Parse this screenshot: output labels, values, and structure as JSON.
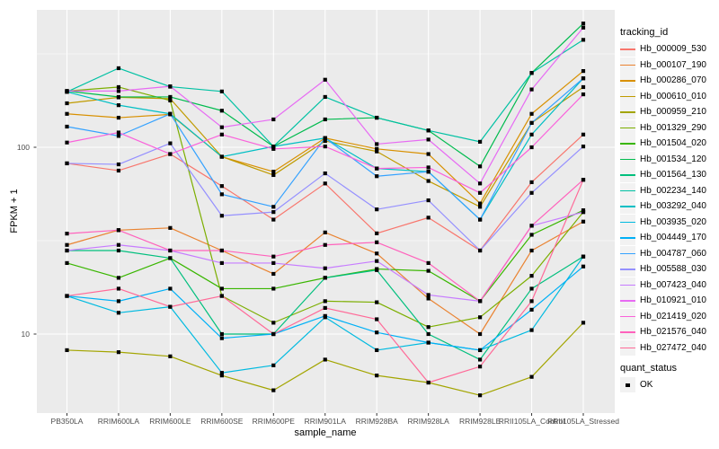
{
  "figure": {
    "panel_bg": "#EBEBEB",
    "grid_color": "#FFFFFF",
    "axis_text_color": "#4D4D4D",
    "tick_mark_color": "#333333",
    "point_color": "#000000"
  },
  "y_axis": {
    "label": "FPKM + 1",
    "tick_labels": [
      "100",
      "10"
    ]
  },
  "x_axis": {
    "label": "sample_name"
  },
  "legend": {
    "tracking_title": "tracking_id",
    "quant_title": "quant_status",
    "quant_label": "OK"
  },
  "chart_data": {
    "type": "line",
    "x_label": "sample_name",
    "y_label": "FPKM + 1",
    "y_scale": "log10",
    "y_ticks": [
      10,
      100
    ],
    "y_minor_ticks": [
      31.62,
      316.23
    ],
    "ylim": [
      3.9,
      550
    ],
    "grid": true,
    "legend_position": "right",
    "marker": "small-black-square",
    "categories": [
      "PB350LA",
      "RRIM600LA",
      "RRIM600LE",
      "RRIM600SE",
      "RRIM600PE",
      "RRIM901LA",
      "RRIM928BA",
      "RRIM928LA",
      "RRIM928LE",
      "RRII105LA_Control",
      "RRII105LA_Stressed"
    ],
    "series": [
      {
        "name": "Hb_000009_530",
        "color": "#F8766D",
        "values": [
          82,
          75,
          92,
          62,
          41,
          64,
          34.6,
          42,
          28,
          65,
          117
        ]
      },
      {
        "name": "Hb_000107_190",
        "color": "#EA8331",
        "values": [
          30,
          36,
          37,
          28,
          21,
          35,
          27,
          15.5,
          10,
          28,
          40
        ]
      },
      {
        "name": "Hb_000286_070",
        "color": "#D89000",
        "values": [
          151,
          144,
          150,
          89,
          74,
          112,
          98,
          92,
          50,
          151,
          256
        ]
      },
      {
        "name": "Hb_000610_010",
        "color": "#C09B00",
        "values": [
          172,
          185,
          182,
          89,
          71,
          108,
          95,
          66,
          48,
          135,
          210
        ]
      },
      {
        "name": "Hb_000959_210",
        "color": "#A3A500",
        "values": [
          8.2,
          8.0,
          7.6,
          6.0,
          5.0,
          7.3,
          6.0,
          5.5,
          4.7,
          5.9,
          11.5
        ]
      },
      {
        "name": "Hb_001329_290",
        "color": "#7CAE00",
        "values": [
          200,
          210,
          178,
          16,
          11.5,
          15,
          14.8,
          10.9,
          12.3,
          20.5,
          45
        ]
      },
      {
        "name": "Hb_001504_020",
        "color": "#39B600",
        "values": [
          24,
          20,
          25.5,
          17.5,
          17.5,
          20,
          22.3,
          21.8,
          15,
          34,
          46
        ]
      },
      {
        "name": "Hb_001534_120",
        "color": "#00BB4E",
        "values": [
          200,
          186,
          186,
          157,
          101,
          141,
          144,
          123,
          79,
          250,
          460
        ]
      },
      {
        "name": "Hb_001564_130",
        "color": "#00BF7D",
        "values": [
          28,
          28,
          25.5,
          10,
          10,
          20,
          22,
          10,
          7.3,
          17.5,
          26
        ]
      },
      {
        "name": "Hb_002234_140",
        "color": "#00C1A3",
        "values": [
          198,
          265,
          211,
          199,
          101,
          186,
          144,
          123,
          107,
          250,
          376
        ]
      },
      {
        "name": "Hb_003292_040",
        "color": "#00BFC4",
        "values": [
          198,
          168,
          151,
          89,
          101,
          112,
          77,
          74,
          41,
          117,
          234
        ]
      },
      {
        "name": "Hb_003935_020",
        "color": "#00BAE0",
        "values": [
          16,
          13,
          14,
          6.2,
          6.8,
          12.3,
          8.2,
          9,
          8.2,
          10.5,
          26
        ]
      },
      {
        "name": "Hb_004449_170",
        "color": "#00B0F6",
        "values": [
          16,
          15,
          17.5,
          9.5,
          10,
          12.5,
          10.2,
          9,
          8.2,
          13.5,
          23
        ]
      },
      {
        "name": "Hb_004787_060",
        "color": "#35A2FF",
        "values": [
          129,
          115,
          151,
          56,
          48,
          112,
          70,
          74,
          41,
          135,
          234
        ]
      },
      {
        "name": "Hb_005588_030",
        "color": "#9590FF",
        "values": [
          82,
          81,
          105,
          43,
          45,
          72.5,
          46.5,
          52,
          28,
          57,
          101
        ]
      },
      {
        "name": "Hb_007423_040",
        "color": "#C77CFF",
        "values": [
          28,
          30,
          28,
          24,
          24,
          22.5,
          24.6,
          16.2,
          15,
          38,
          45
        ]
      },
      {
        "name": "Hb_010921_010",
        "color": "#E76BF3",
        "values": [
          200,
          200,
          212,
          128,
          141,
          230,
          104,
          110,
          64,
          204,
          437
        ]
      },
      {
        "name": "Hb_021419_020",
        "color": "#FA62DB",
        "values": [
          106,
          120,
          92,
          117,
          98,
          101,
          77,
          78,
          57,
          100,
          192
        ]
      },
      {
        "name": "Hb_021576_040",
        "color": "#FF62BC",
        "values": [
          34.5,
          36,
          28,
          28,
          26,
          30,
          31,
          24,
          15,
          38,
          67
        ]
      },
      {
        "name": "Hb_027472_040",
        "color": "#FF6A98",
        "values": [
          16,
          17.5,
          14,
          16,
          10,
          13.8,
          12,
          5.5,
          6.7,
          15,
          67
        ]
      }
    ]
  }
}
